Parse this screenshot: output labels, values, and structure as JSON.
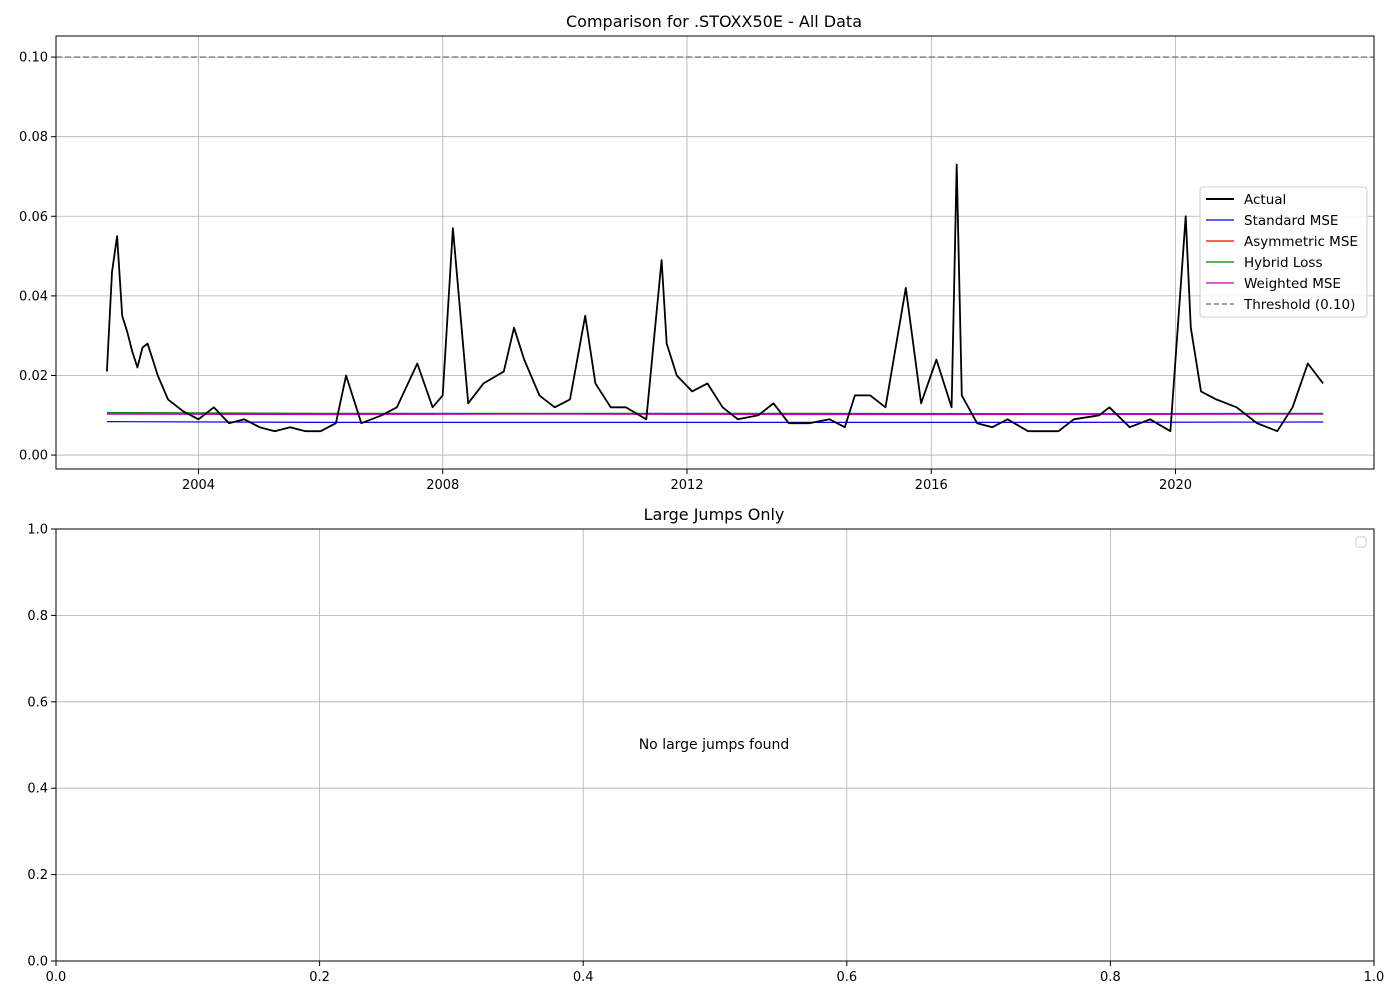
{
  "chart_data": [
    {
      "type": "line",
      "title": "Comparison for .STOXX50E - All Data",
      "xlabel": "",
      "ylabel": "",
      "x_range": [
        "2001-09",
        "2023-04"
      ],
      "ylim": [
        -0.0035,
        0.1053
      ],
      "x_ticks": [
        "2004",
        "2008",
        "2012",
        "2016",
        "2020"
      ],
      "y_ticks": [
        "0.00",
        "0.02",
        "0.04",
        "0.06",
        "0.08",
        "0.10"
      ],
      "grid": true,
      "legend_position": "center-right",
      "threshold": {
        "name": "Threshold (0.10)",
        "value": 0.1,
        "color": "#808080",
        "style": "dashed"
      },
      "series": [
        {
          "name": "Actual",
          "color": "#000000",
          "x": [
            "2002-07",
            "2002-08",
            "2002-09",
            "2002-10",
            "2002-11",
            "2002-12",
            "2003-01",
            "2003-02",
            "2003-03",
            "2003-05",
            "2003-07",
            "2003-10",
            "2004-01",
            "2004-04",
            "2004-07",
            "2004-10",
            "2005-01",
            "2005-04",
            "2005-07",
            "2005-10",
            "2006-01",
            "2006-04",
            "2006-06",
            "2006-09",
            "2007-01",
            "2007-04",
            "2007-08",
            "2007-11",
            "2008-01",
            "2008-03",
            "2008-06",
            "2008-09",
            "2009-01",
            "2009-03",
            "2009-05",
            "2009-08",
            "2009-11",
            "2010-02",
            "2010-05",
            "2010-07",
            "2010-10",
            "2011-01",
            "2011-05",
            "2011-08",
            "2011-09",
            "2011-11",
            "2012-02",
            "2012-05",
            "2012-08",
            "2012-11",
            "2013-03",
            "2013-06",
            "2013-09",
            "2014-01",
            "2014-05",
            "2014-08",
            "2014-10",
            "2015-01",
            "2015-04",
            "2015-08",
            "2015-11",
            "2016-02",
            "2016-05",
            "2016-06",
            "2016-07",
            "2016-10",
            "2017-01",
            "2017-04",
            "2017-08",
            "2017-12",
            "2018-02",
            "2018-05",
            "2018-10",
            "2018-12",
            "2019-04",
            "2019-08",
            "2019-12",
            "2020-03",
            "2020-04",
            "2020-06",
            "2020-09",
            "2021-01",
            "2021-05",
            "2021-09",
            "2021-12",
            "2022-03",
            "2022-06"
          ],
          "y": [
            0.021,
            0.046,
            0.055,
            0.035,
            0.031,
            0.026,
            0.022,
            0.027,
            0.028,
            0.02,
            0.014,
            0.011,
            0.009,
            0.012,
            0.008,
            0.009,
            0.007,
            0.006,
            0.007,
            0.006,
            0.006,
            0.008,
            0.02,
            0.008,
            0.01,
            0.012,
            0.023,
            0.012,
            0.015,
            0.057,
            0.013,
            0.018,
            0.021,
            0.032,
            0.024,
            0.015,
            0.012,
            0.014,
            0.035,
            0.018,
            0.012,
            0.012,
            0.009,
            0.049,
            0.028,
            0.02,
            0.016,
            0.018,
            0.012,
            0.009,
            0.01,
            0.013,
            0.008,
            0.008,
            0.009,
            0.007,
            0.015,
            0.015,
            0.012,
            0.042,
            0.013,
            0.024,
            0.012,
            0.073,
            0.015,
            0.008,
            0.007,
            0.009,
            0.006,
            0.006,
            0.006,
            0.009,
            0.01,
            0.012,
            0.007,
            0.009,
            0.006,
            0.06,
            0.032,
            0.016,
            0.014,
            0.012,
            0.008,
            0.006,
            0.012,
            0.023,
            0.018
          ]
        },
        {
          "name": "Standard MSE",
          "color": "#0000ff",
          "x": [
            "2002-07",
            "2006-01",
            "2010-01",
            "2014-01",
            "2018-01",
            "2022-06"
          ],
          "y": [
            0.0084,
            0.0082,
            0.0082,
            0.0082,
            0.0082,
            0.0083
          ]
        },
        {
          "name": "Asymmetric MSE",
          "color": "#ff0000",
          "x": [
            "2002-07",
            "2006-01",
            "2010-01",
            "2014-01",
            "2018-01",
            "2022-06"
          ],
          "y": [
            0.0104,
            0.0103,
            0.0104,
            0.0103,
            0.0103,
            0.0104
          ]
        },
        {
          "name": "Hybrid Loss",
          "color": "#008000",
          "x": [
            "2002-07",
            "2006-01",
            "2010-01",
            "2014-01",
            "2018-01",
            "2022-06"
          ],
          "y": [
            0.0107,
            0.0105,
            0.0105,
            0.0105,
            0.0104,
            0.0105
          ]
        },
        {
          "name": "Weighted MSE",
          "color": "#bf00bf",
          "x": [
            "2002-07",
            "2006-01",
            "2010-01",
            "2014-01",
            "2018-01",
            "2022-06"
          ],
          "y": [
            0.0103,
            0.0102,
            0.0103,
            0.0102,
            0.0102,
            0.0103
          ]
        }
      ]
    },
    {
      "type": "line",
      "title": "Large Jumps Only",
      "xlabel": "",
      "ylabel": "",
      "xlim": [
        0,
        1
      ],
      "ylim": [
        0,
        1
      ],
      "x_ticks": [
        "0.0",
        "0.2",
        "0.4",
        "0.6",
        "0.8",
        "1.0"
      ],
      "y_ticks": [
        "0.0",
        "0.2",
        "0.4",
        "0.6",
        "0.8",
        "1.0"
      ],
      "grid": true,
      "legend_position": "top-right",
      "annotation": "No large jumps found",
      "series": []
    }
  ]
}
